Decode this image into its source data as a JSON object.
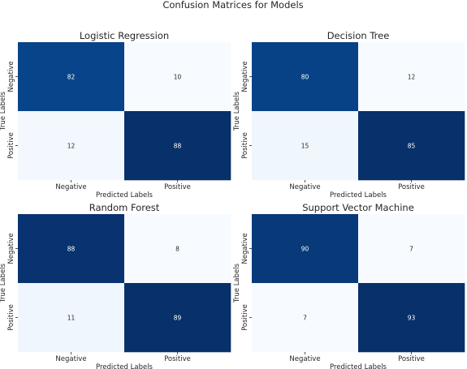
{
  "title": "Confusion Matrices for Models",
  "chart_data": [
    {
      "type": "heatmap",
      "title": "Logistic Regression",
      "xlabel": "Predicted Labels",
      "ylabel": "True Labels",
      "x_categories": [
        "Negative",
        "Positive"
      ],
      "y_categories": [
        "Negative",
        "Positive"
      ],
      "values": [
        [
          82,
          10
        ],
        [
          12,
          88
        ]
      ],
      "colormap": "Blues",
      "colorbar": false,
      "grid": false
    },
    {
      "type": "heatmap",
      "title": "Decision Tree",
      "xlabel": "Predicted Labels",
      "ylabel": "True Labels",
      "x_categories": [
        "Negative",
        "Positive"
      ],
      "y_categories": [
        "Negative",
        "Positive"
      ],
      "values": [
        [
          80,
          12
        ],
        [
          15,
          85
        ]
      ],
      "colormap": "Blues",
      "colorbar": false,
      "grid": false
    },
    {
      "type": "heatmap",
      "title": "Random Forest",
      "xlabel": "Predicted Labels",
      "ylabel": "True Labels",
      "x_categories": [
        "Negative",
        "Positive"
      ],
      "y_categories": [
        "Negative",
        "Positive"
      ],
      "values": [
        [
          88,
          8
        ],
        [
          11,
          89
        ]
      ],
      "colormap": "Blues",
      "colorbar": false,
      "grid": false
    },
    {
      "type": "heatmap",
      "title": "Support Vector Machine",
      "xlabel": "Predicted Labels",
      "ylabel": "True Labels",
      "x_categories": [
        "Negative",
        "Positive"
      ],
      "y_categories": [
        "Negative",
        "Positive"
      ],
      "values": [
        [
          90,
          7
        ],
        [
          7,
          93
        ]
      ],
      "colormap": "Blues",
      "colorbar": false,
      "grid": false
    }
  ]
}
